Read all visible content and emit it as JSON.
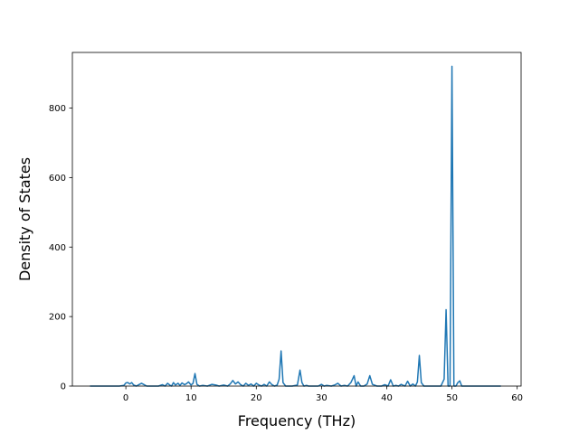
{
  "chart_data": {
    "type": "line",
    "title": "",
    "xlabel": "Frequency (THz)",
    "ylabel": "Density of States",
    "xlim": [
      -8.2,
      60.6
    ],
    "ylim": [
      0,
      960
    ],
    "grid": false,
    "legend": "none",
    "xticks": [
      0,
      10,
      20,
      30,
      40,
      50,
      60
    ],
    "yticks": [
      0,
      200,
      400,
      600,
      800
    ],
    "series": [
      {
        "color": "#1f77b4",
        "x": [
          -5.5,
          -1.0,
          -0.3,
          0.0,
          0.3,
          0.6,
          0.9,
          1.2,
          1.6,
          2.0,
          2.4,
          2.8,
          3.2,
          3.6,
          4.0,
          5.0,
          5.6,
          6.0,
          6.4,
          6.8,
          7.0,
          7.3,
          7.6,
          8.0,
          8.3,
          8.6,
          9.0,
          9.3,
          9.6,
          10.0,
          10.3,
          10.6,
          10.9,
          11.3,
          11.8,
          12.5,
          13.2,
          13.8,
          14.3,
          15.0,
          15.6,
          16.0,
          16.4,
          16.8,
          17.2,
          17.6,
          18.0,
          18.4,
          18.8,
          19.2,
          19.6,
          20.0,
          20.4,
          20.8,
          21.2,
          21.6,
          22.0,
          22.4,
          22.8,
          23.2,
          23.5,
          23.8,
          24.1,
          24.5,
          25.5,
          26.3,
          26.7,
          27.0,
          27.3,
          27.7,
          28.0,
          28.5,
          29.0,
          29.5,
          30.0,
          30.4,
          30.8,
          31.5,
          32.0,
          32.5,
          33.0,
          33.5,
          34.0,
          34.5,
          35.0,
          35.3,
          35.6,
          36.0,
          36.5,
          37.0,
          37.4,
          37.8,
          38.5,
          39.2,
          39.7,
          40.2,
          40.6,
          41.0,
          41.4,
          41.8,
          42.2,
          42.8,
          43.2,
          43.6,
          44.0,
          44.4,
          44.7,
          45.0,
          45.3,
          45.7,
          46.5,
          47.5,
          48.3,
          48.8,
          49.1,
          49.4,
          49.7,
          50.0,
          50.3,
          50.6,
          50.9,
          51.2,
          51.5,
          52.0,
          53.0,
          55.0,
          57.5
        ],
        "y": [
          0,
          0,
          2,
          9,
          10,
          6,
          10,
          3,
          0,
          4,
          8,
          4,
          0,
          0,
          0,
          0,
          4,
          0,
          8,
          2,
          0,
          10,
          3,
          8,
          2,
          9,
          4,
          7,
          12,
          3,
          8,
          36,
          5,
          0,
          2,
          0,
          5,
          3,
          0,
          3,
          0,
          6,
          16,
          6,
          12,
          4,
          0,
          8,
          2,
          6,
          0,
          8,
          3,
          0,
          5,
          0,
          12,
          4,
          0,
          3,
          20,
          101,
          10,
          0,
          0,
          3,
          46,
          10,
          0,
          2,
          0,
          0,
          0,
          0,
          5,
          0,
          2,
          0,
          3,
          8,
          0,
          2,
          0,
          10,
          30,
          0,
          12,
          0,
          0,
          6,
          30,
          5,
          0,
          0,
          4,
          0,
          18,
          0,
          2,
          0,
          5,
          0,
          14,
          0,
          6,
          0,
          12,
          88,
          10,
          0,
          0,
          0,
          0,
          20,
          220,
          0,
          0,
          920,
          0,
          0,
          10,
          15,
          0,
          0,
          0,
          0,
          0
        ]
      }
    ]
  }
}
